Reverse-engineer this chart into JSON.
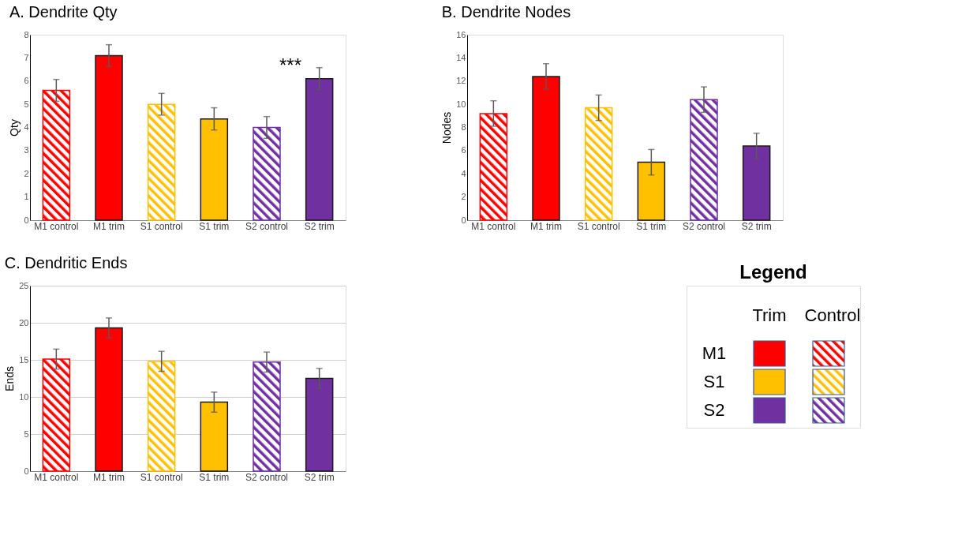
{
  "chart_data": [
    {
      "type": "bar",
      "title": "A. Dendrite Qty",
      "ylabel": "Qty",
      "categories": [
        "M1 control",
        "M1 trim",
        "S1 control",
        "S1 trim",
        "S2 control",
        "S2 trim"
      ],
      "ylim": [
        0,
        8
      ],
      "yticks": [
        0,
        1,
        2,
        3,
        4,
        5,
        6,
        7,
        8
      ],
      "grid": false,
      "series": [
        {
          "colors": [
            "#ff0000",
            null,
            "#ffc000",
            null,
            "#7030a0",
            null
          ],
          "values": [
            5.6,
            null,
            5.0,
            null,
            4.0,
            null
          ],
          "errors": [
            0.47,
            null,
            0.47,
            null,
            0.47,
            null
          ]
        },
        {
          "colors": [
            null,
            "#ff0000",
            null,
            "#ffc000",
            null,
            "#7030a0"
          ],
          "values": [
            null,
            7.1,
            null,
            4.37,
            null,
            6.1
          ],
          "errors": [
            null,
            0.47,
            null,
            0.48,
            null,
            0.48
          ]
        }
      ],
      "annotations": [
        "***"
      ]
    },
    {
      "type": "bar",
      "title": "B. Dendrite Nodes",
      "ylabel": "Nodes",
      "categories": [
        "M1 control",
        "M1 trim",
        "S1 control",
        "S1 trim",
        "S2 control",
        "S2 trim"
      ],
      "ylim": [
        0,
        16
      ],
      "yticks": [
        0,
        2,
        4,
        6,
        8,
        10,
        12,
        14,
        16
      ],
      "grid": false,
      "series": [
        {
          "colors": [
            "#ff0000",
            null,
            "#ffc000",
            null,
            "#7030a0",
            null
          ],
          "values": [
            9.2,
            null,
            9.7,
            null,
            10.4,
            null
          ],
          "errors": [
            1.1,
            null,
            1.1,
            null,
            1.1,
            null
          ]
        },
        {
          "colors": [
            null,
            "#ff0000",
            null,
            "#ffc000",
            null,
            "#7030a0"
          ],
          "values": [
            null,
            12.4,
            null,
            5.0,
            null,
            6.4
          ],
          "errors": [
            null,
            1.1,
            null,
            1.1,
            null,
            1.1
          ]
        }
      ]
    },
    {
      "type": "bar",
      "title": "C.  Dendritic Ends",
      "ylabel": "Ends",
      "categories": [
        "M1 control",
        "M1 trim",
        "S1 control",
        "S1 trim",
        "S2 control",
        "S2 trim"
      ],
      "ylim": [
        0,
        25
      ],
      "yticks": [
        0,
        5,
        10,
        15,
        20,
        25
      ],
      "grid": "y",
      "series": [
        {
          "colors": [
            "#ff0000",
            null,
            "#ffc000",
            null,
            "#7030a0",
            null
          ],
          "values": [
            15.1,
            null,
            14.8,
            null,
            14.7,
            null
          ],
          "errors": [
            1.35,
            null,
            1.35,
            null,
            1.35,
            null
          ]
        },
        {
          "colors": [
            null,
            "#ff0000",
            null,
            "#ffc000",
            null,
            "#7030a0"
          ],
          "values": [
            null,
            19.3,
            null,
            9.3,
            null,
            12.5
          ],
          "errors": [
            null,
            1.35,
            null,
            1.35,
            null,
            1.35
          ]
        }
      ]
    },
    {
      "type": "other",
      "title": "Legend",
      "annotations": [
        "Trim",
        "Control",
        "M1",
        "S1",
        "S2"
      ]
    }
  ]
}
